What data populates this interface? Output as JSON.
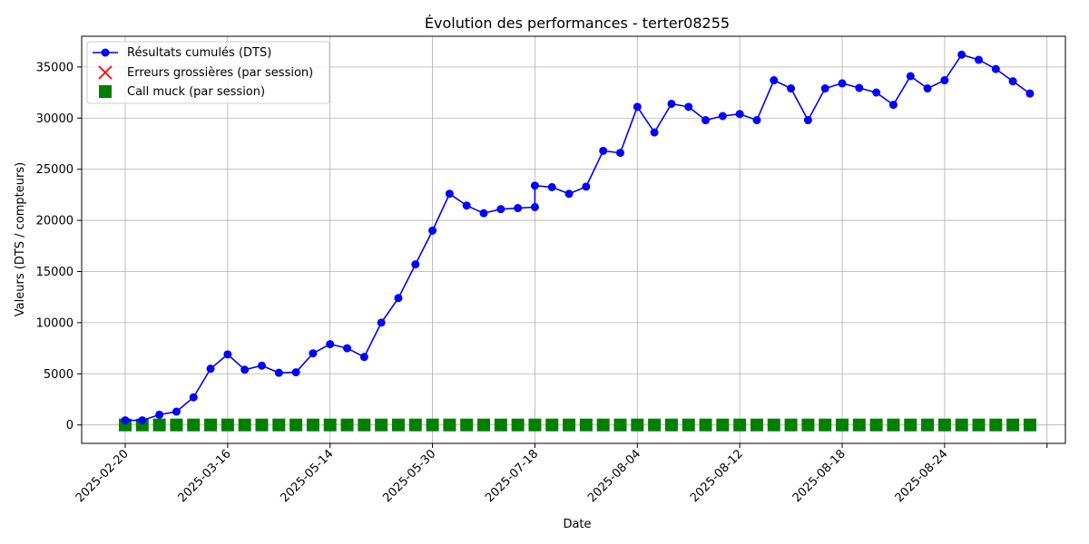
{
  "chart_data": {
    "type": "line",
    "title": "Évolution des performances - terter08255",
    "xlabel": "Date",
    "ylabel": "Valeurs (DTS / compteurs)",
    "ylim": [
      -1800,
      38000
    ],
    "yticks": [
      0,
      5000,
      10000,
      15000,
      20000,
      25000,
      30000,
      35000
    ],
    "xticks": [
      "2025-02-20",
      "2025-03-16",
      "2025-05-14",
      "2025-05-30",
      "2025-07-18",
      "2025-08-04",
      "2025-08-12",
      "2025-08-18",
      "2025-08-24",
      ""
    ],
    "grid": true,
    "legend_position": "top-left",
    "legend": [
      "Résultats cumulés (DTS)",
      "Erreurs grossières (par session)",
      "Call muck (par session)"
    ],
    "colors": {
      "cumulative": "#0000ff",
      "errors": "#ff0000",
      "muck": "#008000",
      "grid": "#b0b0b0"
    },
    "series": [
      {
        "name": "Résultats cumulés (DTS)",
        "kind": "line-marker",
        "points": [
          [
            0,
            450
          ],
          [
            1,
            450
          ],
          [
            2,
            1000
          ],
          [
            3,
            1300
          ],
          [
            4,
            2700
          ],
          [
            5,
            5500
          ],
          [
            6,
            6900
          ],
          [
            7,
            5400
          ],
          [
            8,
            5800
          ],
          [
            9,
            5100
          ],
          [
            10,
            5150
          ],
          [
            11,
            7000
          ],
          [
            12,
            7900
          ],
          [
            13,
            7500
          ],
          [
            14,
            6650
          ],
          [
            15,
            10000
          ],
          [
            16,
            12400
          ],
          [
            17,
            15700
          ],
          [
            18,
            19000
          ],
          [
            19,
            22600
          ],
          [
            20,
            21450
          ],
          [
            21,
            20700
          ],
          [
            22,
            21100
          ],
          [
            23,
            21200
          ],
          [
            24,
            21300
          ],
          [
            24,
            23400
          ],
          [
            25,
            23250
          ],
          [
            26,
            22600
          ],
          [
            27,
            23300
          ],
          [
            28,
            26800
          ],
          [
            29,
            26600
          ],
          [
            30,
            31100
          ],
          [
            31,
            28600
          ],
          [
            32,
            31400
          ],
          [
            33,
            31100
          ],
          [
            34,
            29800
          ],
          [
            35,
            30200
          ],
          [
            36,
            30400
          ],
          [
            37,
            29800
          ],
          [
            38,
            33700
          ],
          [
            39,
            32900
          ],
          [
            40,
            29800
          ],
          [
            41,
            32900
          ],
          [
            42,
            33400
          ],
          [
            43,
            32950
          ],
          [
            44,
            32500
          ],
          [
            45,
            31300
          ],
          [
            46,
            34100
          ],
          [
            47,
            32900
          ],
          [
            48,
            33700
          ],
          [
            49,
            36200
          ],
          [
            50,
            35700
          ],
          [
            51,
            34800
          ],
          [
            52,
            33600
          ],
          [
            53,
            32400
          ]
        ]
      },
      {
        "name": "Erreurs grossières (par session)",
        "kind": "x-marker",
        "points": [
          [
            0,
            0
          ],
          [
            1,
            0
          ],
          [
            2,
            0
          ],
          [
            3,
            0
          ],
          [
            4,
            0
          ],
          [
            5,
            0
          ],
          [
            6,
            0
          ],
          [
            7,
            0
          ],
          [
            8,
            0
          ],
          [
            9,
            0
          ],
          [
            10,
            0
          ],
          [
            11,
            0
          ],
          [
            12,
            0
          ],
          [
            13,
            0
          ],
          [
            14,
            0
          ],
          [
            15,
            0
          ],
          [
            16,
            0
          ],
          [
            17,
            0
          ],
          [
            18,
            0
          ],
          [
            19,
            0
          ],
          [
            20,
            0
          ],
          [
            21,
            0
          ],
          [
            22,
            0
          ],
          [
            23,
            0
          ],
          [
            24,
            0
          ],
          [
            25,
            0
          ],
          [
            26,
            0
          ],
          [
            27,
            0
          ],
          [
            28,
            0
          ],
          [
            29,
            0
          ],
          [
            30,
            0
          ],
          [
            31,
            0
          ],
          [
            32,
            0
          ],
          [
            33,
            0
          ],
          [
            34,
            0
          ],
          [
            35,
            0
          ],
          [
            36,
            0
          ],
          [
            37,
            0
          ],
          [
            38,
            0
          ],
          [
            39,
            0
          ],
          [
            40,
            0
          ],
          [
            41,
            0
          ],
          [
            42,
            0
          ],
          [
            43,
            0
          ],
          [
            44,
            0
          ],
          [
            45,
            0
          ],
          [
            46,
            0
          ],
          [
            47,
            0
          ],
          [
            48,
            0
          ],
          [
            49,
            0
          ],
          [
            50,
            0
          ],
          [
            51,
            0
          ],
          [
            52,
            0
          ],
          [
            53,
            0
          ]
        ]
      },
      {
        "name": "Call muck (par session)",
        "kind": "square-marker",
        "points": [
          [
            0,
            0
          ],
          [
            1,
            0
          ],
          [
            2,
            0
          ],
          [
            3,
            0
          ],
          [
            4,
            0
          ],
          [
            5,
            0
          ],
          [
            6,
            0
          ],
          [
            7,
            0
          ],
          [
            8,
            0
          ],
          [
            9,
            0
          ],
          [
            10,
            0
          ],
          [
            11,
            0
          ],
          [
            12,
            0
          ],
          [
            13,
            0
          ],
          [
            14,
            0
          ],
          [
            15,
            0
          ],
          [
            16,
            0
          ],
          [
            17,
            0
          ],
          [
            18,
            0
          ],
          [
            19,
            0
          ],
          [
            20,
            0
          ],
          [
            21,
            0
          ],
          [
            22,
            0
          ],
          [
            23,
            0
          ],
          [
            24,
            0
          ],
          [
            25,
            0
          ],
          [
            26,
            0
          ],
          [
            27,
            0
          ],
          [
            28,
            0
          ],
          [
            29,
            0
          ],
          [
            30,
            0
          ],
          [
            31,
            0
          ],
          [
            32,
            0
          ],
          [
            33,
            0
          ],
          [
            34,
            0
          ],
          [
            35,
            0
          ],
          [
            36,
            0
          ],
          [
            37,
            0
          ],
          [
            38,
            0
          ],
          [
            39,
            0
          ],
          [
            40,
            0
          ],
          [
            41,
            0
          ],
          [
            42,
            0
          ],
          [
            43,
            0
          ],
          [
            44,
            0
          ],
          [
            45,
            0
          ],
          [
            46,
            0
          ],
          [
            47,
            0
          ],
          [
            48,
            0
          ],
          [
            49,
            0
          ],
          [
            50,
            0
          ],
          [
            51,
            0
          ],
          [
            52,
            0
          ],
          [
            53,
            0
          ]
        ]
      }
    ]
  }
}
